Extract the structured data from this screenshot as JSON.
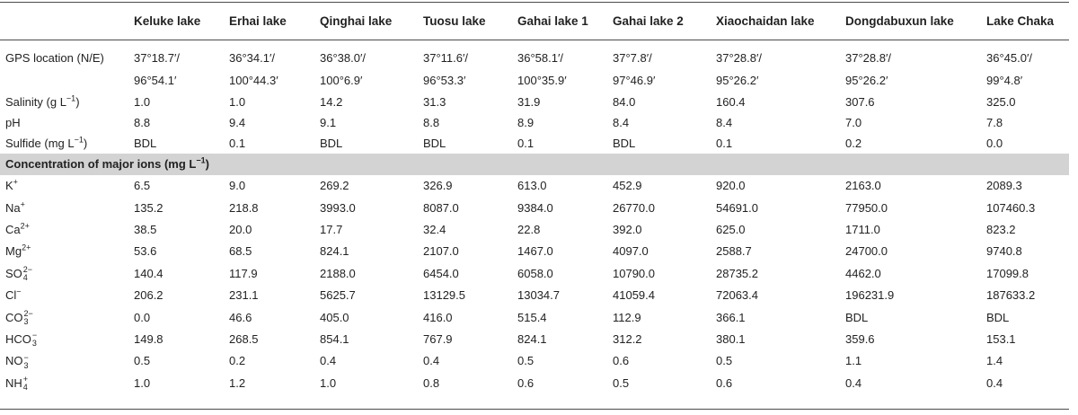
{
  "headers": [
    "",
    "Keluke lake",
    "Erhai lake",
    "Qinghai lake",
    "Tuosu lake",
    "Gahai lake 1",
    "Gahai lake 2",
    "Xiaochaidan lake",
    "Dongdabuxun lake",
    "Lake Chaka"
  ],
  "gps": {
    "label": "GPS location (N/E)",
    "north": [
      "37°18.7′/",
      "36°34.1′/",
      "36°38.0′/",
      "37°11.6′/",
      "36°58.1′/",
      "37°7.8′/",
      "37°28.8′/",
      "37°28.8′/",
      "36°45.0′/"
    ],
    "east": [
      "96°54.1′",
      "100°44.3′",
      "100°6.9′",
      "96°53.3′",
      "100°35.9′",
      "97°46.9′",
      "95°26.2′",
      "95°26.2′",
      "99°4.8′"
    ]
  },
  "salinity": {
    "label_pre": "Salinity (g L",
    "label_sup": "−1",
    "label_post": ")",
    "values": [
      "1.0 ",
      "1.0",
      "14.2",
      "31.3",
      "31.9",
      "84.0",
      "160.4",
      "307.6",
      "325.0"
    ]
  },
  "ph": {
    "label": "pH",
    "values": [
      "8.8",
      "9.4",
      "9.1",
      "8.8",
      "8.9",
      "8.4",
      "8.4",
      "7.0",
      "7.8"
    ]
  },
  "sulfide": {
    "label_pre": "Sulfide (mg L",
    "label_sup": "−1",
    "label_post": ")",
    "values": [
      "BDL",
      "0.1",
      "BDL",
      "BDL",
      "0.1",
      "BDL",
      "0.1",
      "0.2",
      "0.0"
    ]
  },
  "section": {
    "pre": "Concentration of major ions (mg L",
    "sup": "−1",
    "post": ")"
  },
  "ions": [
    {
      "base": "K",
      "sup": "+",
      "sub": "",
      "values": [
        "6.5",
        "9.0",
        "269.2",
        "326.9",
        "613.0",
        "452.9",
        "920.0",
        "2163.0",
        "2089.3"
      ]
    },
    {
      "base": "Na",
      "sup": "+",
      "sub": "",
      "values": [
        "135.2",
        "218.8",
        "3993.0",
        "8087.0",
        "9384.0",
        "26770.0",
        "54691.0",
        "77950.0",
        "107460.3"
      ]
    },
    {
      "base": "Ca",
      "sup": "2+",
      "sub": "",
      "values": [
        "38.5",
        "20.0",
        "17.7",
        "32.4",
        "22.8",
        "392.0",
        "625.0",
        "1711.0",
        "823.2"
      ]
    },
    {
      "base": "Mg",
      "sup": "2+",
      "sub": "",
      "values": [
        "53.6",
        "68.5",
        "824.1",
        "2107.0",
        "1467.0",
        "4097.0",
        "2588.7",
        "24700.0",
        "9740.8"
      ]
    },
    {
      "base": "SO",
      "sup": "2−",
      "sub": "4",
      "values": [
        "140.4",
        "117.9",
        "2188.0",
        "6454.0",
        "6058.0",
        "10790.0",
        "28735.2",
        "4462.0",
        "17099.8"
      ]
    },
    {
      "base": "Cl",
      "sup": "−",
      "sub": "",
      "values": [
        "206.2",
        "231.1",
        "5625.7",
        "13129.5",
        "13034.7",
        "41059.4",
        "72063.4",
        "196231.9",
        "187633.2"
      ]
    },
    {
      "base": "CO",
      "sup": "2−",
      "sub": "3",
      "values": [
        "0.0",
        "46.6",
        "405.0",
        "416.0",
        "515.4",
        "112.9",
        "366.1",
        "BDL",
        "BDL"
      ]
    },
    {
      "base": "HCO",
      "sup": "−",
      "sub": "3",
      "values": [
        "149.8",
        "268.5",
        "854.1",
        "767.9",
        "824.1",
        "312.2",
        "380.1",
        "359.6",
        "153.1"
      ]
    },
    {
      "base": "NO",
      "sup": "−",
      "sub": "3",
      "values": [
        "0.5",
        "0.2",
        "0.4",
        "0.4",
        "0.5",
        "0.6",
        "0.5",
        "1.1",
        "1.4"
      ]
    },
    {
      "base": "NH",
      "sup": "+",
      "sub": "4",
      "values": [
        "1.0",
        "1.2",
        "1.0",
        "0.8",
        "0.6",
        "0.5",
        "0.6",
        "0.4",
        "0.4"
      ]
    }
  ]
}
